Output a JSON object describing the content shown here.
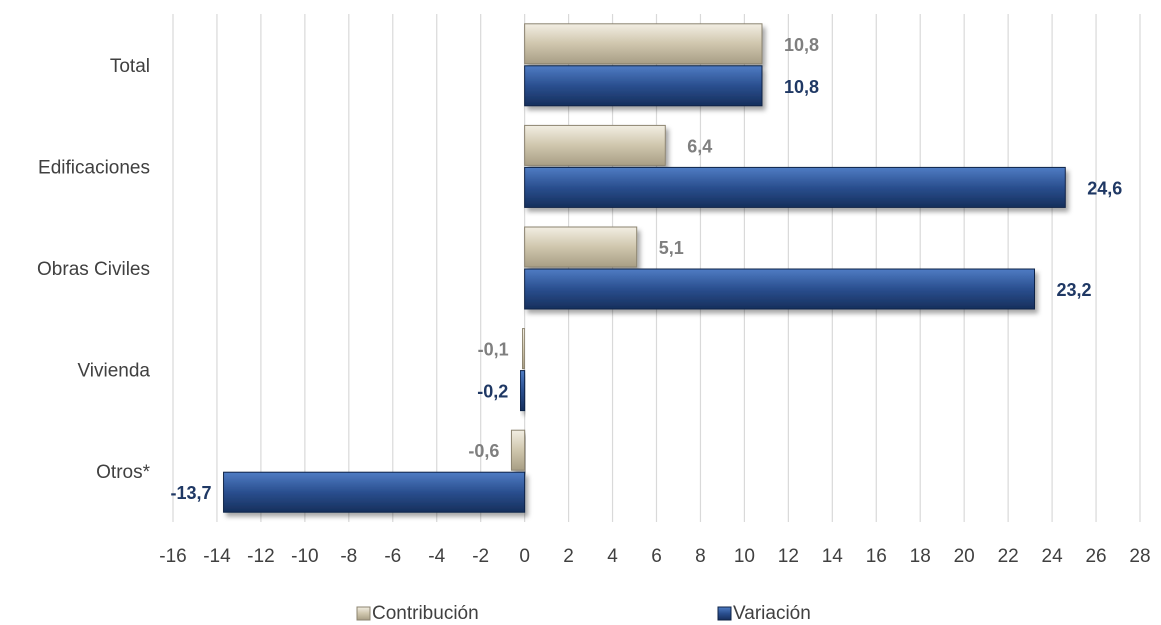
{
  "chart_data": {
    "type": "bar",
    "orientation": "horizontal",
    "categories": [
      "Total",
      "Edificaciones",
      "Obras Civiles",
      "Vivienda",
      "Otros*"
    ],
    "series": [
      {
        "name": "Contribución",
        "values": [
          10.8,
          6.4,
          5.1,
          -0.1,
          -0.6
        ],
        "labels": [
          "10,8",
          "6,4",
          "5,1",
          "-0,1",
          "-0,6"
        ],
        "color": "#d9d2bf"
      },
      {
        "name": "Variación",
        "values": [
          10.8,
          24.6,
          23.2,
          -0.2,
          -13.7
        ],
        "labels": [
          "10,8",
          "24,6",
          "23,2",
          "-0,2",
          "-13,7"
        ],
        "color": "#2f5597"
      }
    ],
    "xlim": [
      -16,
      28
    ],
    "xticks": [
      -16,
      -14,
      -12,
      -10,
      -8,
      -6,
      -4,
      -2,
      0,
      2,
      4,
      6,
      8,
      10,
      12,
      14,
      16,
      18,
      20,
      22,
      24,
      26,
      28
    ],
    "grid": "vertical",
    "legend_position": "bottom",
    "title": "",
    "xlabel": "",
    "ylabel": ""
  }
}
